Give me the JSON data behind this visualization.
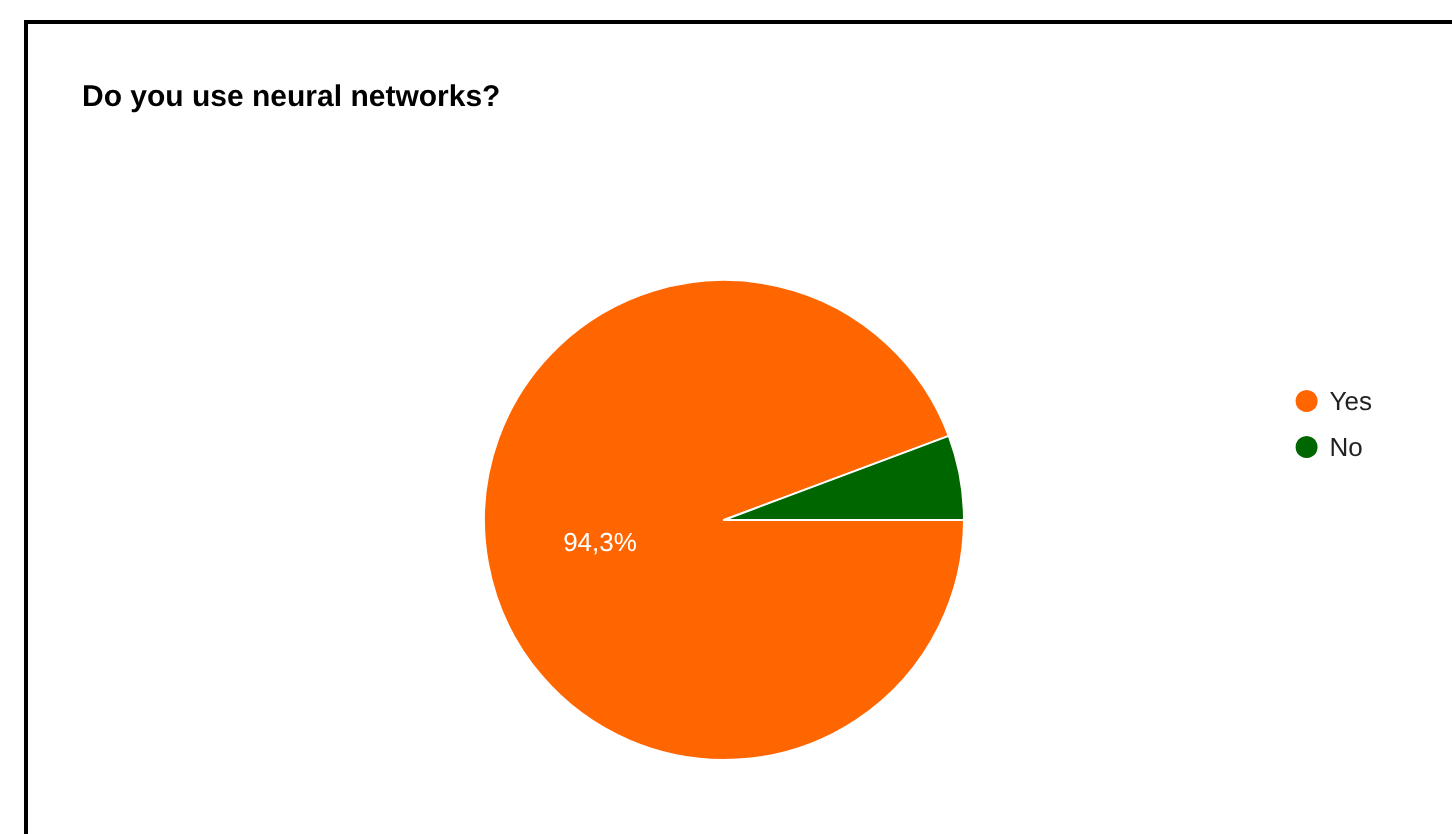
{
  "chart_data": {
    "type": "pie",
    "title": "Do you use neural networks?",
    "categories": [
      "Yes",
      "No"
    ],
    "values": [
      94.3,
      5.7
    ],
    "colors": [
      "#ff6600",
      "#006600"
    ],
    "value_labels": [
      "94,3%",
      null
    ],
    "legend": "right"
  }
}
